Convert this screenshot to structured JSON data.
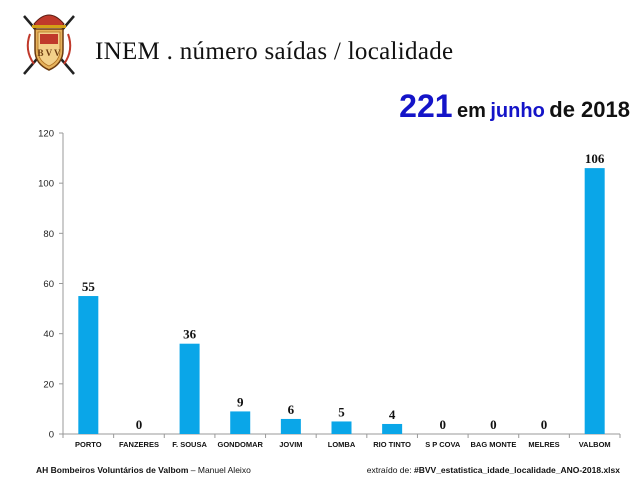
{
  "header": {
    "title": "INEM . número saídas / localidade",
    "total": "221",
    "em": "em",
    "month": "junho",
    "year_prefix": "de 2018"
  },
  "logo": {
    "lettering": "B V V"
  },
  "footer": {
    "org": "AH Bombeiros Voluntários de Valbom",
    "author": "– Manuel Aleixo",
    "source_prefix": "extraído de:",
    "source_file": "#BVV_estatistica_idade_localidade_ANO-2018.xlsx"
  },
  "colors": {
    "bar": "#0aa6e8",
    "title_accent": "#1414c8"
  },
  "chart_data": {
    "type": "bar",
    "categories": [
      "PORTO",
      "FANZERES",
      "F. SOUSA",
      "GONDOMAR",
      "JOVIM",
      "LOMBA",
      "RIO TINTO",
      "S P COVA",
      "BAG MONTE",
      "MELRES",
      "VALBOM"
    ],
    "values": [
      55,
      0,
      36,
      9,
      6,
      5,
      4,
      0,
      0,
      0,
      106
    ],
    "ylim": [
      0,
      120
    ],
    "yticks": [
      0,
      20,
      40,
      60,
      80,
      100,
      120
    ],
    "grid": false,
    "data_labels": true
  }
}
